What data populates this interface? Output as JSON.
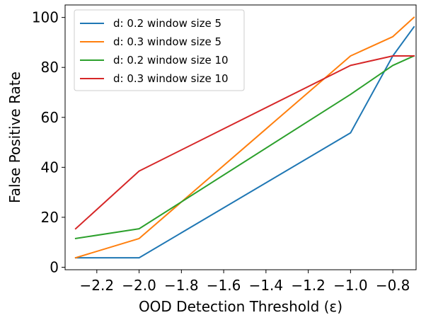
{
  "chart_data": {
    "type": "line",
    "xlabel": "OOD Detection Threshold (ε)",
    "ylabel": "False Positive Rate",
    "xlim": [
      -2.35,
      -0.69
    ],
    "ylim": [
      -1,
      105
    ],
    "xticks": [
      -2.2,
      -2.0,
      -1.8,
      -1.6,
      -1.4,
      -1.2,
      -1.0,
      -0.8
    ],
    "xtick_labels": [
      "−2.2",
      "−2.0",
      "−1.8",
      "−1.6",
      "−1.4",
      "−1.2",
      "−1.0",
      "−0.8"
    ],
    "yticks": [
      0,
      20,
      40,
      60,
      80,
      100
    ],
    "ytick_labels": [
      "0",
      "20",
      "40",
      "60",
      "80",
      "100"
    ],
    "grid": false,
    "legend_position": "top-left",
    "series": [
      {
        "name": "d: 0.2 window size 5",
        "color": "#1f77b4",
        "x": [
          -2.3,
          -2.0,
          -1.0,
          -0.8,
          -0.7
        ],
        "y": [
          3.8,
          3.8,
          53.8,
          84.6,
          96.2
        ]
      },
      {
        "name": "d: 0.3 window size 5",
        "color": "#ff7f0e",
        "x": [
          -2.3,
          -2.0,
          -1.0,
          -0.8,
          -0.7
        ],
        "y": [
          3.8,
          11.5,
          84.6,
          92.3,
          100.0
        ]
      },
      {
        "name": "d: 0.2 window size 10",
        "color": "#2ca02c",
        "x": [
          -2.3,
          -2.0,
          -1.0,
          -0.8,
          -0.7
        ],
        "y": [
          11.5,
          15.4,
          69.2,
          80.8,
          84.6
        ]
      },
      {
        "name": "d: 0.3 window size 10",
        "color": "#d62728",
        "x": [
          -2.3,
          -2.0,
          -1.0,
          -0.8,
          -0.7
        ],
        "y": [
          15.4,
          38.5,
          80.8,
          84.6,
          84.6
        ]
      }
    ]
  }
}
